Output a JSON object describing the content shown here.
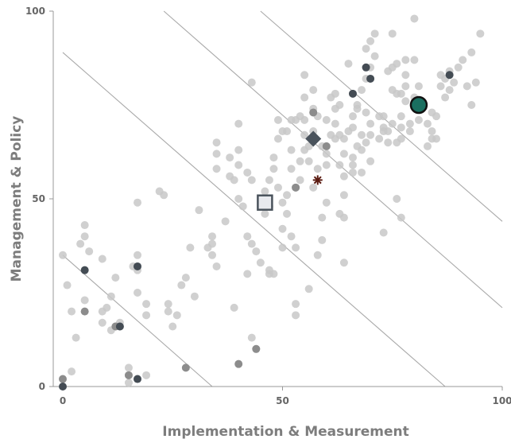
{
  "chart_data": {
    "type": "scatter",
    "title": "",
    "xlabel": "Implementation & Measurement",
    "ylabel": "Management & Policy",
    "xlim": [
      0,
      100
    ],
    "ylim": [
      0,
      100
    ],
    "x_ticks": [
      "0",
      "50",
      "100"
    ],
    "y_ticks": [
      "0",
      "50",
      "100"
    ],
    "grid": false,
    "colors": {
      "background_points": "#c8c8c8",
      "dark_points": "#444c54",
      "mid_points": "#8c8c8c",
      "highlight_fill": "#1a6f60",
      "square_fill": "#e8eaee",
      "diamond_fill": "#4a535c",
      "star": "#5a1a10",
      "reference_lines": "#a9a9a9",
      "axis": "#999999"
    },
    "reference_lines": [
      {
        "x1": 0,
        "y1": 35,
        "x2": 34,
        "y2": 0
      },
      {
        "x1": 0,
        "y1": 89,
        "x2": 87,
        "y2": 0
      },
      {
        "x1": 23,
        "y1": 100,
        "x2": 100,
        "y2": 21
      },
      {
        "x1": 45,
        "y1": 100,
        "x2": 100,
        "y2": 44
      }
    ],
    "series": [
      {
        "marker": "circle-light",
        "points": [
          [
            0,
            35
          ],
          [
            1,
            27
          ],
          [
            2,
            4
          ],
          [
            2,
            20
          ],
          [
            3,
            13
          ],
          [
            4,
            38
          ],
          [
            5,
            40
          ],
          [
            5,
            43
          ],
          [
            6,
            36
          ],
          [
            5,
            23
          ],
          [
            9,
            34
          ],
          [
            9,
            20
          ],
          [
            9,
            17
          ],
          [
            10,
            21
          ],
          [
            12,
            29
          ],
          [
            12,
            16
          ],
          [
            11,
            15
          ],
          [
            11,
            24
          ],
          [
            13,
            17
          ],
          [
            13,
            16
          ],
          [
            15,
            5
          ],
          [
            15,
            1
          ],
          [
            17,
            49
          ],
          [
            17,
            35
          ],
          [
            16,
            32
          ],
          [
            17,
            31
          ],
          [
            17,
            25
          ],
          [
            19,
            22
          ],
          [
            19,
            19
          ],
          [
            19,
            3
          ],
          [
            22,
            52
          ],
          [
            23,
            51
          ],
          [
            24,
            22
          ],
          [
            24,
            20
          ],
          [
            25,
            16
          ],
          [
            26,
            19
          ],
          [
            27,
            27
          ],
          [
            28,
            29
          ],
          [
            29,
            37
          ],
          [
            30,
            24
          ],
          [
            31,
            47
          ],
          [
            33,
            37
          ],
          [
            34,
            40
          ],
          [
            34,
            35
          ],
          [
            34,
            38
          ],
          [
            35,
            32
          ],
          [
            35,
            58
          ],
          [
            35,
            62
          ],
          [
            35,
            65
          ],
          [
            37,
            44
          ],
          [
            38,
            56
          ],
          [
            38,
            61
          ],
          [
            39,
            55
          ],
          [
            39,
            21
          ],
          [
            40,
            50
          ],
          [
            40,
            59
          ],
          [
            40,
            63
          ],
          [
            40,
            70
          ],
          [
            41,
            48
          ],
          [
            42,
            57
          ],
          [
            42,
            40
          ],
          [
            42,
            30
          ],
          [
            43,
            38
          ],
          [
            43,
            13
          ],
          [
            43,
            55
          ],
          [
            43,
            81
          ],
          [
            44,
            36
          ],
          [
            45,
            33
          ],
          [
            46,
            52
          ],
          [
            46,
            46
          ],
          [
            47,
            48
          ],
          [
            47,
            55
          ],
          [
            47,
            31
          ],
          [
            47,
            30
          ],
          [
            48,
            61
          ],
          [
            48,
            58
          ],
          [
            49,
            71
          ],
          [
            49,
            53
          ],
          [
            50,
            49
          ],
          [
            50,
            42
          ],
          [
            50,
            37
          ],
          [
            51,
            51
          ],
          [
            51,
            46
          ],
          [
            51,
            68
          ],
          [
            52,
            63
          ],
          [
            52,
            58
          ],
          [
            53,
            71
          ],
          [
            53,
            53
          ],
          [
            53,
            37
          ],
          [
            53,
            22
          ],
          [
            53,
            19
          ],
          [
            54,
            72
          ],
          [
            54,
            55
          ],
          [
            54,
            60
          ],
          [
            55,
            63
          ],
          [
            55,
            67
          ],
          [
            55,
            71
          ],
          [
            55,
            83
          ],
          [
            56,
            60
          ],
          [
            56,
            64
          ],
          [
            56,
            26
          ],
          [
            57,
            68
          ],
          [
            57,
            74
          ],
          [
            57,
            79
          ],
          [
            57,
            53
          ],
          [
            58,
            35
          ],
          [
            58,
            72
          ],
          [
            59,
            45
          ],
          [
            59,
            39
          ],
          [
            59,
            64
          ],
          [
            60,
            49
          ],
          [
            60,
            59
          ],
          [
            60,
            71
          ],
          [
            61,
            67
          ],
          [
            61,
            77
          ],
          [
            62,
            66
          ],
          [
            62,
            74
          ],
          [
            62,
            70
          ],
          [
            63,
            75
          ],
          [
            63,
            46
          ],
          [
            63,
            59
          ],
          [
            63,
            67
          ],
          [
            64,
            51
          ],
          [
            64,
            66
          ],
          [
            64,
            56
          ],
          [
            64,
            33
          ],
          [
            64,
            45
          ],
          [
            65,
            68
          ],
          [
            65,
            86
          ],
          [
            66,
            61
          ],
          [
            66,
            69
          ],
          [
            66,
            59
          ],
          [
            66,
            72
          ],
          [
            67,
            64
          ],
          [
            67,
            74
          ],
          [
            67,
            75
          ],
          [
            68,
            67
          ],
          [
            68,
            63
          ],
          [
            68,
            79
          ],
          [
            69,
            65
          ],
          [
            69,
            73
          ],
          [
            69,
            82
          ],
          [
            69,
            90
          ],
          [
            70,
            70
          ],
          [
            70,
            67
          ],
          [
            70,
            60
          ],
          [
            70,
            85
          ],
          [
            70,
            92
          ],
          [
            71,
            94
          ],
          [
            71,
            88
          ],
          [
            72,
            72
          ],
          [
            72,
            66
          ],
          [
            73,
            72
          ],
          [
            73,
            68
          ],
          [
            73,
            69
          ],
          [
            73,
            41
          ],
          [
            74,
            84
          ],
          [
            74,
            65
          ],
          [
            74,
            68
          ],
          [
            75,
            79
          ],
          [
            75,
            85
          ],
          [
            75,
            70
          ],
          [
            75,
            94
          ],
          [
            76,
            86
          ],
          [
            76,
            65
          ],
          [
            76,
            78
          ],
          [
            76,
            50
          ],
          [
            77,
            45
          ],
          [
            77,
            66
          ],
          [
            77,
            72
          ],
          [
            77,
            69
          ],
          [
            77,
            78
          ],
          [
            78,
            76
          ],
          [
            78,
            83
          ],
          [
            78,
            80
          ],
          [
            78,
            87
          ],
          [
            79,
            70
          ],
          [
            79,
            68
          ],
          [
            80,
            77
          ],
          [
            80,
            98
          ],
          [
            80,
            87
          ],
          [
            81,
            80
          ],
          [
            81,
            71
          ],
          [
            82,
            75
          ],
          [
            82,
            75
          ],
          [
            83,
            64
          ],
          [
            83,
            70
          ],
          [
            84,
            73
          ],
          [
            84,
            68
          ],
          [
            84,
            66
          ],
          [
            85,
            72
          ],
          [
            85,
            66
          ],
          [
            86,
            80
          ],
          [
            86,
            83
          ],
          [
            87,
            82
          ],
          [
            87,
            77
          ],
          [
            88,
            79
          ],
          [
            88,
            84
          ],
          [
            89,
            81
          ],
          [
            90,
            85
          ],
          [
            91,
            87
          ],
          [
            92,
            80
          ],
          [
            93,
            75
          ],
          [
            93,
            89
          ],
          [
            94,
            81
          ],
          [
            95,
            94
          ],
          [
            48,
            30
          ],
          [
            44,
            10
          ],
          [
            52,
            40
          ],
          [
            58,
            58
          ],
          [
            60,
            62
          ],
          [
            62,
            78
          ],
          [
            64,
            62
          ],
          [
            66,
            57
          ],
          [
            68,
            57
          ],
          [
            55,
            77
          ],
          [
            50,
            68
          ],
          [
            49,
            66
          ],
          [
            52,
            71
          ]
        ]
      },
      {
        "marker": "circle-mid",
        "points": [
          [
            0,
            2
          ],
          [
            5,
            20
          ],
          [
            12,
            16
          ],
          [
            15,
            3
          ],
          [
            28,
            5
          ],
          [
            40,
            6
          ],
          [
            44,
            10
          ],
          [
            53,
            53
          ],
          [
            57,
            73
          ],
          [
            60,
            64
          ]
        ]
      },
      {
        "marker": "circle-dark",
        "points": [
          [
            0,
            0
          ],
          [
            5,
            31
          ],
          [
            13,
            16
          ],
          [
            17,
            32
          ],
          [
            17,
            2
          ],
          [
            66,
            78
          ],
          [
            69,
            85
          ],
          [
            70,
            82
          ],
          [
            88,
            83
          ]
        ]
      },
      {
        "marker": "circle-highlight",
        "points": [
          [
            81,
            75
          ]
        ]
      },
      {
        "marker": "square",
        "points": [
          [
            46,
            49
          ]
        ]
      },
      {
        "marker": "diamond",
        "points": [
          [
            57,
            66
          ]
        ]
      },
      {
        "marker": "star",
        "points": [
          [
            58,
            55
          ]
        ]
      }
    ]
  }
}
